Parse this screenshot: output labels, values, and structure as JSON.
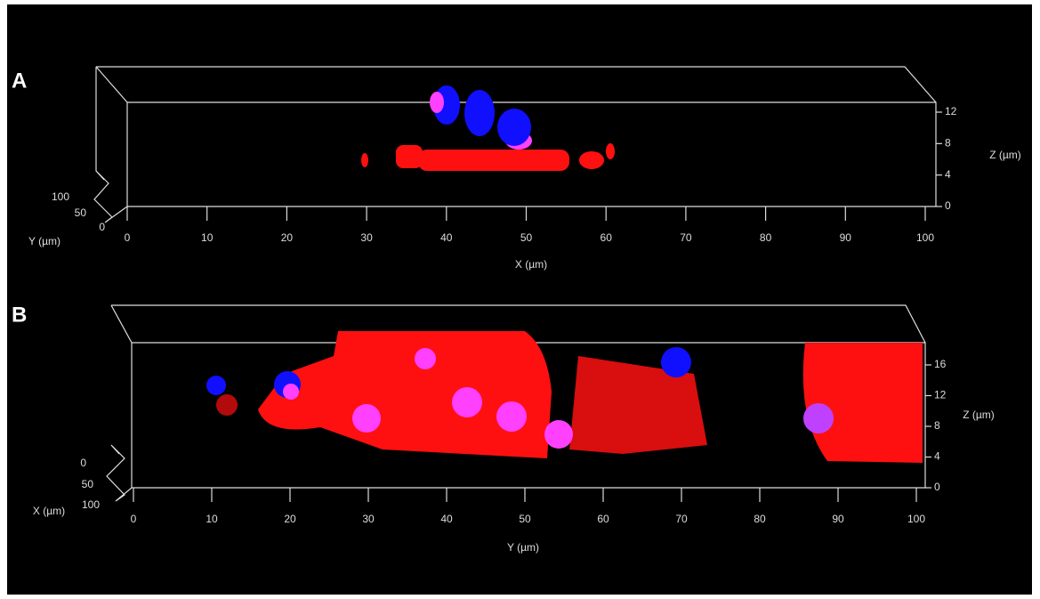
{
  "panels": [
    {
      "label": "A",
      "x_axis": {
        "title": "X (µm)",
        "ticks": [
          0,
          10,
          20,
          30,
          40,
          50,
          60,
          70,
          80,
          90,
          100
        ]
      },
      "z_axis": {
        "title": "Z (µm)",
        "ticks": [
          0,
          4,
          8,
          12
        ]
      },
      "y_axis": {
        "title": "Y (µm)",
        "ticks": [
          100,
          50,
          0
        ]
      }
    },
    {
      "label": "B",
      "x_axis": {
        "title": "Y (µm)",
        "ticks": [
          0,
          10,
          20,
          30,
          40,
          50,
          60,
          70,
          80,
          90,
          100
        ]
      },
      "z_axis": {
        "title": "Z (µm)",
        "ticks": [
          0,
          4,
          8,
          12,
          16
        ]
      },
      "y_axis": {
        "title": "X (µm)",
        "ticks": [
          0,
          50,
          100
        ]
      }
    }
  ]
}
